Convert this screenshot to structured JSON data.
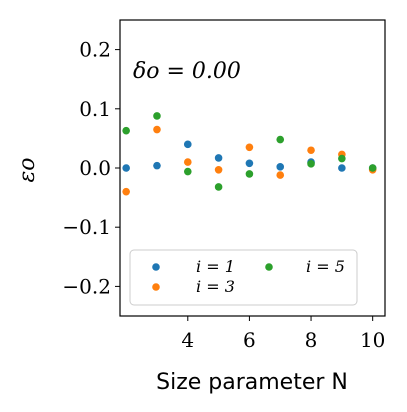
{
  "chart_data": {
    "type": "scatter",
    "annotation": "δo = 0.00",
    "xlabel": "Size parameter N",
    "ylabel": "εo",
    "xlim": [
      1.8,
      10.4
    ],
    "ylim": [
      -0.25,
      0.25
    ],
    "xticks": [
      4,
      6,
      8,
      10
    ],
    "xtick_labels": [
      "4",
      "6",
      "8",
      "10"
    ],
    "yticks": [
      -0.2,
      -0.1,
      0.0,
      0.1,
      0.2
    ],
    "ytick_labels": [
      "−0.2",
      "−0.1",
      "0.0",
      "0.1",
      "0.2"
    ],
    "grid": false,
    "legend_position": "lower-center",
    "series": [
      {
        "name": "i = 1",
        "color": "#1f77b4",
        "x": [
          2,
          3,
          4,
          5,
          6,
          7,
          8,
          9,
          10
        ],
        "y": [
          0.0,
          0.004,
          0.04,
          0.017,
          0.008,
          0.002,
          0.01,
          0.0,
          0.0
        ]
      },
      {
        "name": "i = 3",
        "color": "#ff7f0e",
        "x": [
          2,
          3,
          4,
          5,
          6,
          7,
          8,
          9,
          10
        ],
        "y": [
          -0.04,
          0.065,
          0.01,
          -0.003,
          0.035,
          -0.012,
          0.03,
          0.023,
          -0.003
        ]
      },
      {
        "name": "i = 5",
        "color": "#2ca02c",
        "x": [
          2,
          3,
          4,
          5,
          6,
          7,
          8,
          9,
          10
        ],
        "y": [
          0.063,
          0.088,
          -0.006,
          -0.032,
          -0.01,
          0.048,
          0.007,
          0.016,
          0.0
        ]
      }
    ]
  }
}
